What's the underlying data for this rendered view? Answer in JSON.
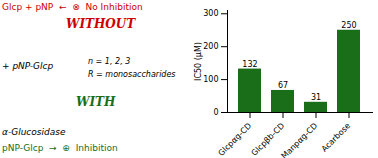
{
  "chart_data": {
    "type": "bar",
    "categories": [
      "Glcpαg-CD",
      "Glcpβb-CD",
      "Manpαg-CD",
      "Acarbose"
    ],
    "values": [
      132,
      67,
      31,
      250
    ],
    "color": "#1a6e1a",
    "ylabel": "IC50 (μM)",
    "ylim": [
      0,
      310
    ],
    "yticks": [
      0,
      100,
      200,
      300
    ],
    "data_labels": true,
    "grid": false,
    "annotations": [
      {
        "text": "Glcp + pNP  ←  ⊗  No Inhibition",
        "color": "#cc0000"
      },
      {
        "text": "WITHOUT",
        "color": "#cc0000"
      },
      {
        "text": "+ pNP-Glcp",
        "color": "black"
      },
      {
        "text": "n = 1, 2, 3",
        "color": "black"
      },
      {
        "text": "R = monosaccharides",
        "color": "black"
      },
      {
        "text": "WITH",
        "color": "#1a6e1a"
      },
      {
        "text": "α-Glucosidase",
        "color": "black"
      },
      {
        "text": "pNP-Glcp  →  ⊕  Inhibition",
        "color": "#1a6e1a"
      }
    ]
  }
}
